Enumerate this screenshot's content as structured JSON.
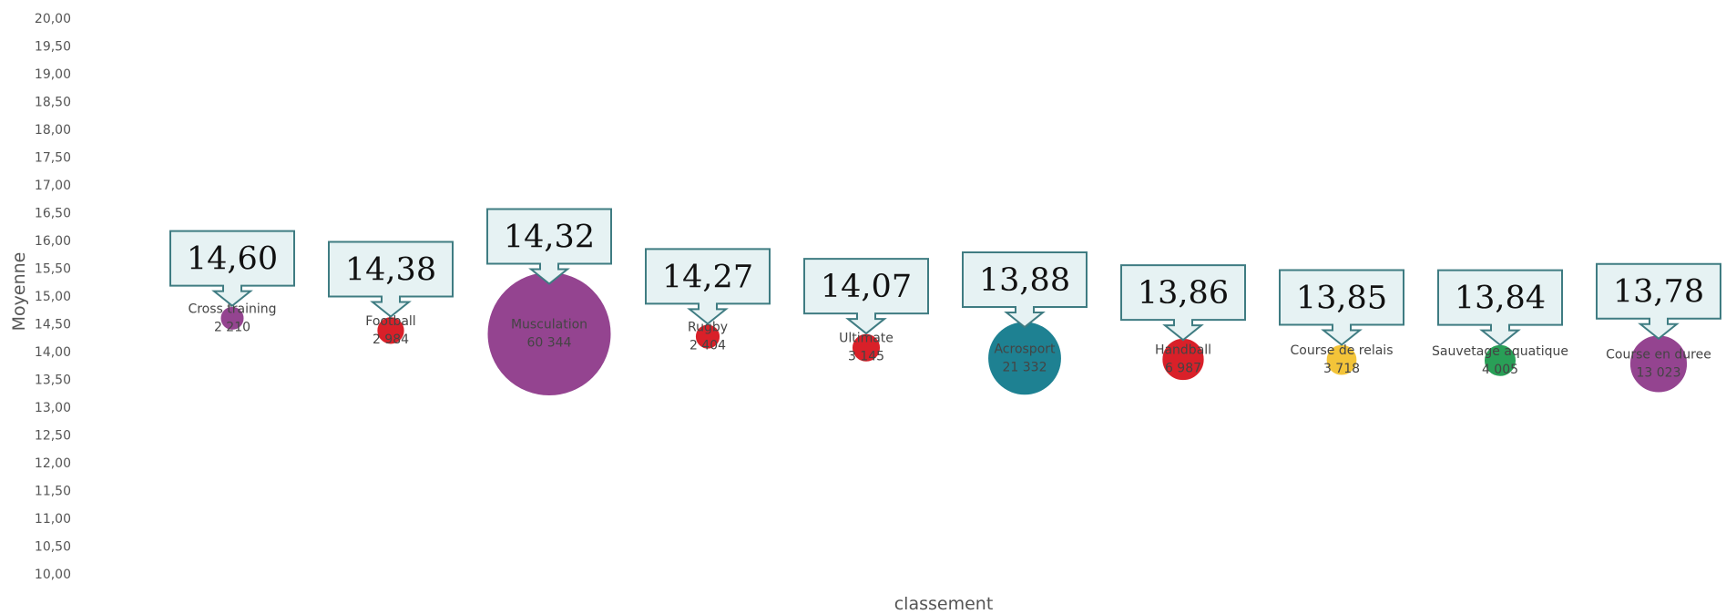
{
  "chart_data": {
    "type": "scatter",
    "xlabel": "classement",
    "ylabel": "Moyenne",
    "ylim": [
      10,
      20
    ],
    "y_ticks": [
      "20,00",
      "19,50",
      "19,00",
      "18,50",
      "18,00",
      "17,50",
      "17,00",
      "16,50",
      "16,00",
      "15,50",
      "15,00",
      "14,50",
      "14,00",
      "13,50",
      "13,00",
      "12,50",
      "12,00",
      "11,50",
      "11,00",
      "10,50",
      "10,00"
    ],
    "grid": false,
    "points": [
      {
        "rank": 1,
        "name": "Cross training",
        "count_label": "2 210",
        "count": 2210,
        "y": 14.6,
        "callout": "14,60",
        "color": "#8E3A8A"
      },
      {
        "rank": 2,
        "name": "Football",
        "count_label": "2 984",
        "count": 2984,
        "y": 14.38,
        "callout": "14,38",
        "color": "#D7141E"
      },
      {
        "rank": 3,
        "name": "Musculation",
        "count_label": "60 344",
        "count": 60344,
        "y": 14.32,
        "callout": "14,32",
        "color": "#8E3A8A"
      },
      {
        "rank": 4,
        "name": "Rugby",
        "count_label": "2 404",
        "count": 2404,
        "y": 14.27,
        "callout": "14,27",
        "color": "#D7141E"
      },
      {
        "rank": 5,
        "name": "Ultimate",
        "count_label": "3 145",
        "count": 3145,
        "y": 14.07,
        "callout": "14,07",
        "color": "#D7141E"
      },
      {
        "rank": 6,
        "name": "Acrosport",
        "count_label": "21 332",
        "count": 21332,
        "y": 13.88,
        "callout": "13,88",
        "color": "#127A8C"
      },
      {
        "rank": 7,
        "name": "Handball",
        "count_label": "6 987",
        "count": 6987,
        "y": 13.86,
        "callout": "13,86",
        "color": "#D7141E"
      },
      {
        "rank": 8,
        "name": "Course de relais",
        "count_label": "3 718",
        "count": 3718,
        "y": 13.85,
        "callout": "13,85",
        "color": "#F2C12E"
      },
      {
        "rank": 9,
        "name": "Sauvetage aquatique",
        "count_label": "4 005",
        "count": 4005,
        "y": 13.84,
        "callout": "13,84",
        "color": "#1E9A4E"
      },
      {
        "rank": 10,
        "name": "Course en duree",
        "count_label": "13 023",
        "count": 13023,
        "y": 13.78,
        "callout": "13,78",
        "color": "#8E3A8A"
      }
    ]
  }
}
